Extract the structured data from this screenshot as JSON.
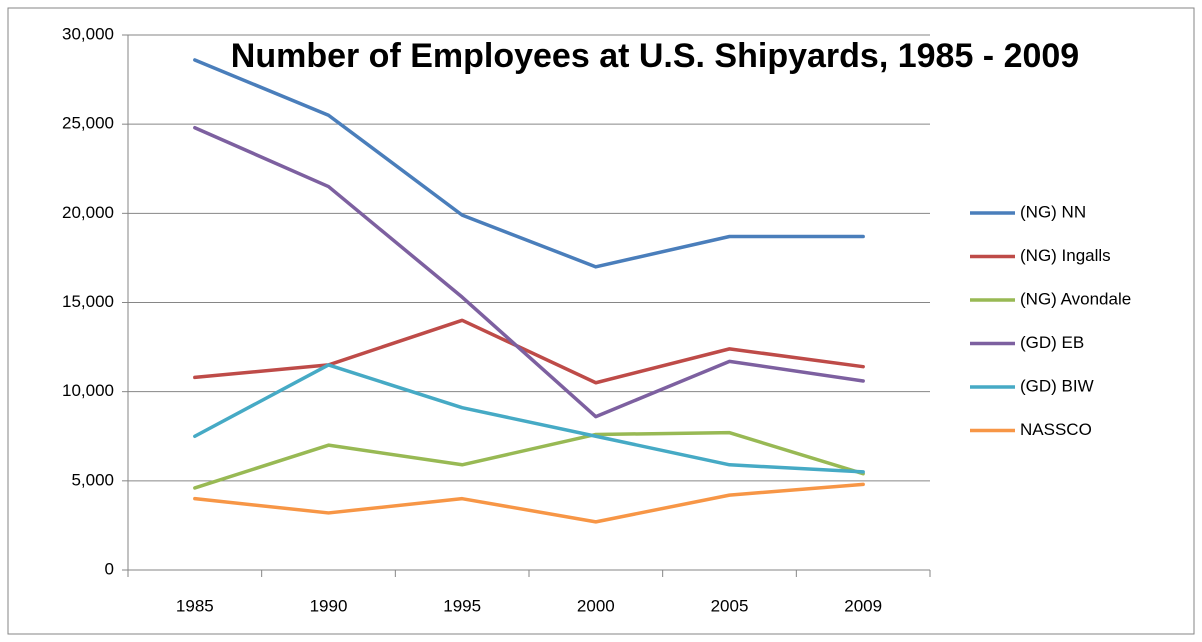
{
  "chart_data": {
    "type": "line",
    "title": "Number of Employees at U.S. Shipyards, 1985 - 2009",
    "categories": [
      "1985",
      "1990",
      "1995",
      "2000",
      "2005",
      "2009"
    ],
    "series": [
      {
        "name": "(NG) NN",
        "color": "#4a7ebb",
        "values": [
          28600,
          25500,
          19900,
          17000,
          18700,
          18700
        ]
      },
      {
        "name": "(NG) Ingalls",
        "color": "#be4b48",
        "values": [
          10800,
          11500,
          14000,
          10500,
          12400,
          11400
        ]
      },
      {
        "name": "(NG) Avondale",
        "color": "#98b954",
        "values": [
          4600,
          7000,
          5900,
          7600,
          7700,
          5400
        ]
      },
      {
        "name": "(GD) EB",
        "color": "#7d60a0",
        "values": [
          24800,
          21500,
          15300,
          8600,
          11700,
          10600
        ]
      },
      {
        "name": "(GD) BIW",
        "color": "#46aac5",
        "values": [
          7500,
          11500,
          9100,
          7500,
          5900,
          5500
        ]
      },
      {
        "name": "NASSCO",
        "color": "#f79646",
        "values": [
          4000,
          3200,
          4000,
          2700,
          4200,
          4800
        ]
      }
    ],
    "ylim": [
      0,
      30000
    ],
    "yticks": [
      0,
      {
        "value": 5000,
        "label": "5,000"
      },
      {
        "value": 10000,
        "label": "10,000"
      },
      {
        "value": 15000,
        "label": "15,000"
      },
      {
        "value": 20000,
        "label": "20,000"
      },
      {
        "value": 25000,
        "label": "25,000"
      },
      {
        "value": 30000,
        "label": "30,000"
      }
    ],
    "grid": true,
    "legend": "right"
  }
}
